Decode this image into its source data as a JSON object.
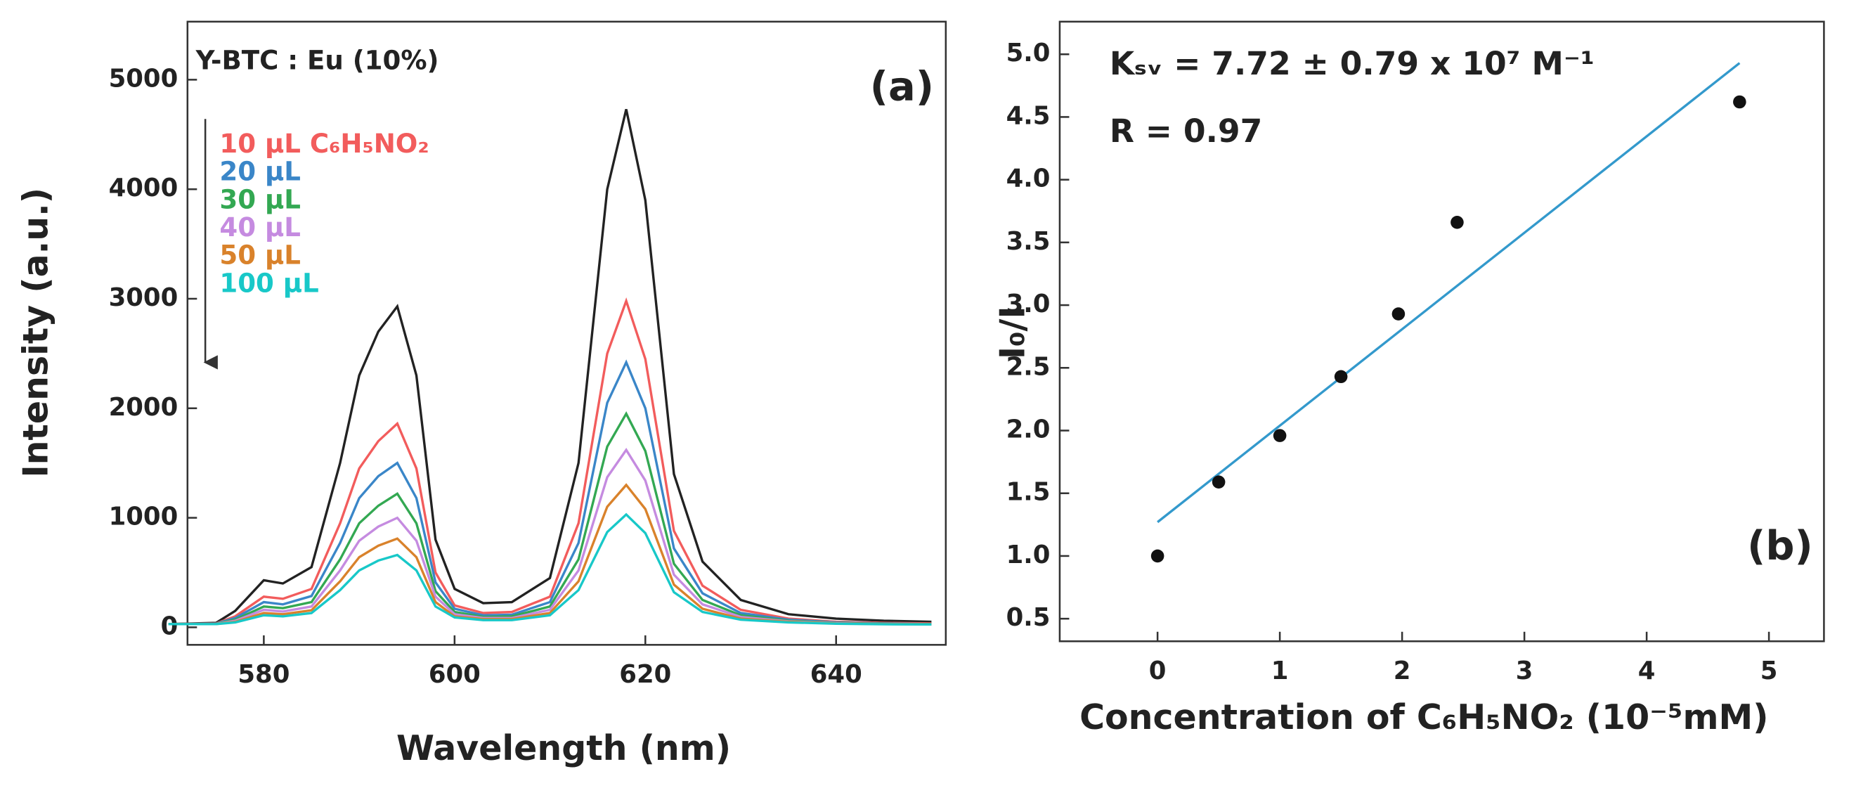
{
  "chart_data": [
    {
      "type": "line",
      "x": [
        570,
        575,
        577,
        580,
        582,
        585,
        588,
        590,
        592,
        594,
        596,
        598,
        600,
        603,
        606,
        610,
        613,
        616,
        618,
        620,
        623,
        626,
        630,
        635,
        640,
        645,
        650
      ],
      "series": [
        {
          "color": "#222222",
          "values": [
            30,
            40,
            150,
            430,
            400,
            550,
            1500,
            2300,
            2700,
            2930,
            2300,
            800,
            350,
            220,
            230,
            450,
            1500,
            4000,
            4730,
            3900,
            1400,
            600,
            250,
            120,
            80,
            60,
            50
          ]
        },
        {
          "name": "10 μL C₆H₅NO₂",
          "color": "#f25c5c",
          "values": [
            30,
            35,
            100,
            280,
            260,
            350,
            950,
            1450,
            1700,
            1860,
            1450,
            500,
            200,
            130,
            140,
            280,
            950,
            2500,
            2980,
            2450,
            880,
            380,
            160,
            80,
            50,
            40,
            35
          ]
        },
        {
          "name": "20 μL",
          "color": "#3a86c8",
          "values": [
            30,
            33,
            85,
            230,
            210,
            285,
            770,
            1180,
            1380,
            1500,
            1180,
            410,
            170,
            110,
            115,
            230,
            770,
            2050,
            2420,
            2000,
            720,
            310,
            130,
            70,
            45,
            35,
            30
          ]
        },
        {
          "name": "30 μL",
          "color": "#33a852",
          "values": [
            30,
            32,
            70,
            190,
            175,
            230,
            620,
            950,
            1110,
            1220,
            950,
            330,
            140,
            95,
            100,
            190,
            620,
            1650,
            1950,
            1610,
            580,
            250,
            110,
            60,
            40,
            32,
            30
          ]
        },
        {
          "name": "40 μL",
          "color": "#c58be0",
          "values": [
            30,
            31,
            60,
            160,
            145,
            190,
            520,
            790,
            920,
            1000,
            790,
            280,
            120,
            85,
            85,
            160,
            520,
            1370,
            1620,
            1340,
            480,
            210,
            95,
            55,
            38,
            30,
            28
          ]
        },
        {
          "name": "50 μL",
          "color": "#d9822b",
          "values": [
            30,
            30,
            50,
            130,
            120,
            155,
            420,
            640,
            745,
            810,
            640,
            230,
            100,
            75,
            75,
            130,
            420,
            1100,
            1300,
            1080,
            390,
            170,
            80,
            50,
            35,
            30,
            28
          ]
        },
        {
          "name": "100 μL",
          "color": "#18c8c8",
          "values": [
            30,
            30,
            45,
            110,
            100,
            130,
            340,
            520,
            610,
            660,
            520,
            190,
            90,
            65,
            65,
            110,
            340,
            870,
            1030,
            860,
            320,
            140,
            70,
            45,
            33,
            28,
            26
          ]
        }
      ],
      "xlim": [
        572,
        651.5
      ],
      "ylim": [
        -160,
        5530
      ],
      "xticks": [
        580,
        600,
        620,
        640
      ],
      "yticks": [
        0,
        1000,
        2000,
        3000,
        4000,
        5000
      ],
      "xlabel": "Wavelength (nm)",
      "ylabel": "Intensity (a.u.)",
      "annotations": [
        "Y-BTC : Eu (10%)",
        "(a)"
      ]
    },
    {
      "type": "scatter",
      "x": [
        0,
        0.5,
        1,
        1.5,
        1.97,
        2.45,
        4.76
      ],
      "values": [
        1.0,
        1.59,
        1.96,
        2.43,
        2.93,
        3.66,
        4.62
      ],
      "color": "#111111",
      "fit": {
        "x": [
          0,
          4.76
        ],
        "values": [
          1.27,
          4.93
        ],
        "color": "#3399cc"
      },
      "xlim": [
        -0.8,
        5.45
      ],
      "ylim": [
        0.32,
        5.26
      ],
      "xticks": [
        0,
        1,
        2,
        3,
        4,
        5
      ],
      "yticks": [
        0.5,
        {
          "value": 1,
          "label": "1.0"
        },
        1.5,
        {
          "value": 2,
          "label": "2.0"
        },
        2.5,
        {
          "value": 3,
          "label": "3.0"
        },
        3.5,
        {
          "value": 4,
          "label": "4.0"
        },
        4.5,
        {
          "value": 5,
          "label": "5.0"
        }
      ],
      "xlabel": "Concentration of C₆H₅NO₂ (10⁻⁵mM)",
      "ylabel": "I₀/I",
      "annotations": [
        "Kₛᵥ = 7.72 ± 0.79 x 10⁷ M⁻¹",
        "R = 0.97",
        "(b)"
      ]
    }
  ]
}
